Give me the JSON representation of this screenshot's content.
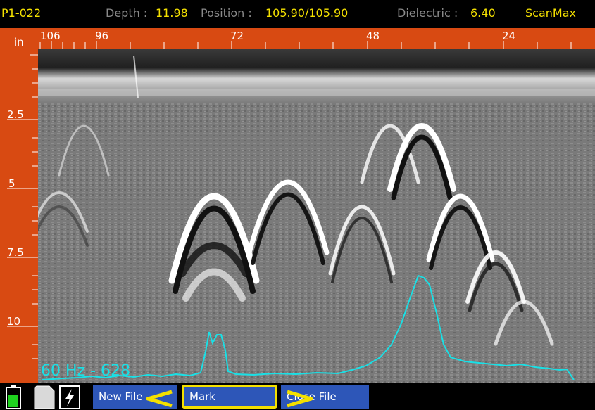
{
  "status": {
    "file_id": "P1-022",
    "depth_label": "Depth :",
    "depth_value": "11.98",
    "position_label": "Position :",
    "position_value": "105.90/105.90",
    "dielectric_label": "Dielectric :",
    "dielectric_value": "6.40",
    "mode": "ScanMax"
  },
  "ruler_top": {
    "unit": "in",
    "labels": [
      "106",
      "96",
      "72",
      "48",
      "24"
    ]
  },
  "ruler_left": {
    "labels": [
      "2.5",
      "5",
      "7.5",
      "10"
    ]
  },
  "trace": {
    "readout": "60 Hz - 628"
  },
  "toolbar": {
    "new_file_label": "New File",
    "mark_label": "Mark",
    "close_file_label": "Close File"
  },
  "icons": [
    "battery-icon",
    "sd-card-icon",
    "power-icon",
    "prev-arrow-icon",
    "next-arrow-icon"
  ],
  "colors": {
    "ruler": "#d84a12",
    "value_yellow": "#f4e000",
    "trace_cyan": "#19e0e6",
    "button_blue": "#2d56b8",
    "battery_green": "#1fd21f"
  }
}
